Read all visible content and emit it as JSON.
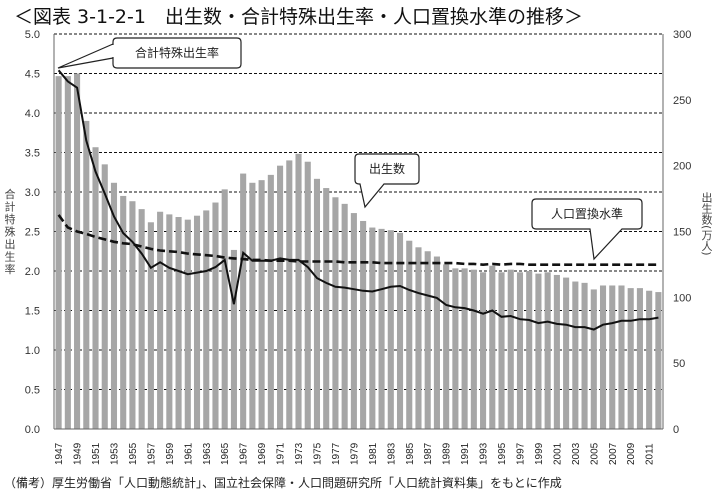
{
  "title": "＜図表 3-1-2-1　出生数・合計特殊出生率・人口置換水準の推移＞",
  "note": "（備考）厚生労働省「人口動態統計」、国立社会保障・人口問題研究所「人口統計資料集」をもとに作成",
  "chart_data": {
    "type": "bar+line",
    "title": "出生数・合計特殊出生率・人口置換水準の推移",
    "y_left_label": "合計特殊出生率",
    "y_right_label": "出生数(万人)",
    "y_left_range": [
      0,
      5.0
    ],
    "y_right_range": [
      0,
      300
    ],
    "y_left_ticks": [
      "0.0",
      "0.5",
      "1.0",
      "1.5",
      "2.0",
      "2.5",
      "3.0",
      "3.5",
      "4.0",
      "4.5",
      "5.0"
    ],
    "y_right_ticks": [
      "0",
      "50",
      "100",
      "150",
      "200",
      "250",
      "300"
    ],
    "grid": true,
    "colors": {
      "bars": "#a6a6a6",
      "tfr": "#111111",
      "replacement": "#111111"
    },
    "x": [
      1947,
      1948,
      1949,
      1950,
      1951,
      1952,
      1953,
      1954,
      1955,
      1956,
      1957,
      1958,
      1959,
      1960,
      1961,
      1962,
      1963,
      1964,
      1965,
      1966,
      1967,
      1968,
      1969,
      1970,
      1971,
      1972,
      1973,
      1974,
      1975,
      1976,
      1977,
      1978,
      1979,
      1980,
      1981,
      1982,
      1983,
      1984,
      1985,
      1986,
      1987,
      1988,
      1989,
      1990,
      1991,
      1992,
      1993,
      1994,
      1995,
      1996,
      1997,
      1998,
      1999,
      2000,
      2001,
      2002,
      2003,
      2004,
      2005,
      2006,
      2007,
      2008,
      2009,
      2010,
      2011,
      2012
    ],
    "series": [
      {
        "name": "出生数",
        "type": "bar",
        "axis": "right",
        "values": [
          268,
          268,
          270,
          234,
          214,
          201,
          187,
          177,
          173,
          167,
          157,
          165,
          163,
          161,
          159,
          162,
          166,
          172,
          182,
          136,
          194,
          187,
          189,
          193,
          200,
          204,
          209,
          203,
          190,
          183,
          176,
          171,
          164,
          158,
          153,
          152,
          151,
          149,
          143,
          138,
          135,
          131,
          125,
          122,
          122,
          121,
          119,
          124,
          119,
          121,
          119,
          120,
          118,
          119,
          117,
          115,
          112,
          111,
          106,
          109,
          109,
          109,
          107,
          107,
          105,
          104
        ]
      },
      {
        "name": "合計特殊出生率",
        "type": "line",
        "axis": "left",
        "values": [
          4.54,
          4.4,
          4.32,
          3.65,
          3.26,
          2.98,
          2.69,
          2.48,
          2.37,
          2.22,
          2.04,
          2.11,
          2.04,
          2.0,
          1.96,
          1.98,
          2.0,
          2.05,
          2.14,
          1.58,
          2.23,
          2.13,
          2.13,
          2.13,
          2.16,
          2.14,
          2.14,
          2.05,
          1.91,
          1.85,
          1.8,
          1.79,
          1.77,
          1.75,
          1.74,
          1.77,
          1.8,
          1.81,
          1.76,
          1.72,
          1.69,
          1.66,
          1.57,
          1.54,
          1.53,
          1.5,
          1.46,
          1.5,
          1.42,
          1.43,
          1.39,
          1.38,
          1.34,
          1.36,
          1.33,
          1.32,
          1.29,
          1.29,
          1.26,
          1.32,
          1.34,
          1.37,
          1.37,
          1.39,
          1.39,
          1.41
        ]
      },
      {
        "name": "人口置換水準",
        "type": "line",
        "style": "dashed",
        "axis": "left",
        "values": [
          2.71,
          2.55,
          2.5,
          2.47,
          2.43,
          2.4,
          2.37,
          2.35,
          2.34,
          2.31,
          2.28,
          2.26,
          2.25,
          2.24,
          2.22,
          2.21,
          2.2,
          2.19,
          2.17,
          2.16,
          2.15,
          2.14,
          2.14,
          2.13,
          2.13,
          2.13,
          2.12,
          2.12,
          2.12,
          2.12,
          2.12,
          2.11,
          2.11,
          2.11,
          2.11,
          2.1,
          2.1,
          2.1,
          2.1,
          2.1,
          2.1,
          2.1,
          2.1,
          2.1,
          2.09,
          2.09,
          2.08,
          2.09,
          2.08,
          2.09,
          2.09,
          2.08,
          2.08,
          2.08,
          2.08,
          2.08,
          2.08,
          2.08,
          2.08,
          2.08,
          2.08,
          2.08,
          2.08,
          2.08,
          2.08,
          2.08
        ]
      }
    ],
    "annotations": [
      "合計特殊出生率",
      "出生数",
      "人口置換水準"
    ]
  }
}
